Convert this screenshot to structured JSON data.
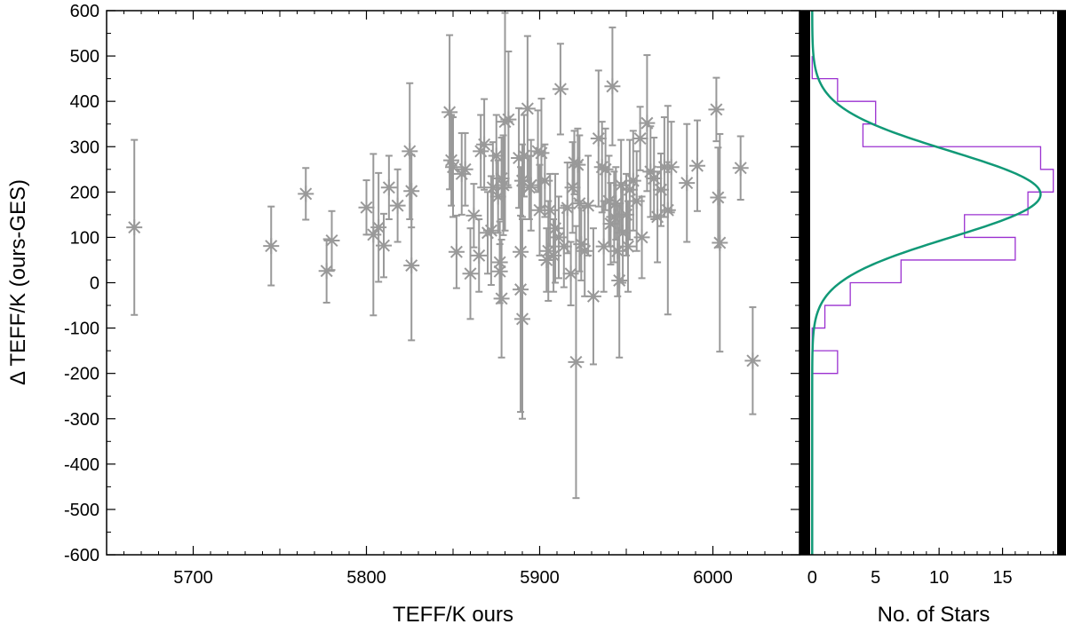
{
  "chart_data": [
    {
      "type": "scatter",
      "title": "",
      "xlabel": "TEFF/K ours",
      "ylabel": "Δ TEFF/K (ours-GES)",
      "xlim": [
        5650,
        6050
      ],
      "ylim": [
        -600,
        600
      ],
      "x_ticks": [
        5700,
        5800,
        5900,
        6000
      ],
      "y_ticks": [
        -600,
        -500,
        -400,
        -300,
        -200,
        -100,
        0,
        100,
        200,
        300,
        400,
        500,
        600
      ],
      "grid": false,
      "legend": "none",
      "colors": {
        "points": "#999999"
      },
      "marker": "asterisk",
      "points": [
        {
          "x": 5666,
          "y": 122,
          "err": 193
        },
        {
          "x": 5745,
          "y": 81,
          "err": 87
        },
        {
          "x": 5765,
          "y": 196,
          "err": 57
        },
        {
          "x": 5777,
          "y": 26,
          "err": 70
        },
        {
          "x": 5780,
          "y": 93,
          "err": 65
        },
        {
          "x": 5800,
          "y": 166,
          "err": 60
        },
        {
          "x": 5804,
          "y": 106,
          "err": 178
        },
        {
          "x": 5807,
          "y": 122,
          "err": 120
        },
        {
          "x": 5810,
          "y": 82,
          "err": 70
        },
        {
          "x": 5813,
          "y": 210,
          "err": 70
        },
        {
          "x": 5818,
          "y": 170,
          "err": 80
        },
        {
          "x": 5825,
          "y": 290,
          "err": 150
        },
        {
          "x": 5826,
          "y": 202,
          "err": 80
        },
        {
          "x": 5826,
          "y": 38,
          "err": 165
        },
        {
          "x": 5848,
          "y": 376,
          "err": 170
        },
        {
          "x": 5849,
          "y": 270,
          "err": 100
        },
        {
          "x": 5850,
          "y": 255,
          "err": 110
        },
        {
          "x": 5852,
          "y": 68,
          "err": 80
        },
        {
          "x": 5855,
          "y": 240,
          "err": 90
        },
        {
          "x": 5857,
          "y": 250,
          "err": 80
        },
        {
          "x": 5860,
          "y": 20,
          "err": 100
        },
        {
          "x": 5862,
          "y": 148,
          "err": 70
        },
        {
          "x": 5865,
          "y": 60,
          "err": 80
        },
        {
          "x": 5866,
          "y": 290,
          "err": 80
        },
        {
          "x": 5868,
          "y": 305,
          "err": 100
        },
        {
          "x": 5870,
          "y": 110,
          "err": 90
        },
        {
          "x": 5872,
          "y": 115,
          "err": 120
        },
        {
          "x": 5873,
          "y": 210,
          "err": 100
        },
        {
          "x": 5875,
          "y": 280,
          "err": 90
        },
        {
          "x": 5876,
          "y": 190,
          "err": 80
        },
        {
          "x": 5877,
          "y": 45,
          "err": 90
        },
        {
          "x": 5877,
          "y": 25,
          "err": 60
        },
        {
          "x": 5878,
          "y": -35,
          "err": 130
        },
        {
          "x": 5878,
          "y": 230,
          "err": 90
        },
        {
          "x": 5879,
          "y": 215,
          "err": 110
        },
        {
          "x": 5880,
          "y": 355,
          "err": 240
        },
        {
          "x": 5882,
          "y": 360,
          "err": 150
        },
        {
          "x": 5888,
          "y": 275,
          "err": 110
        },
        {
          "x": 5889,
          "y": 68,
          "err": 80
        },
        {
          "x": 5889,
          "y": -15,
          "err": 270
        },
        {
          "x": 5890,
          "y": 225,
          "err": 80
        },
        {
          "x": 5890,
          "y": -80,
          "err": 220
        },
        {
          "x": 5891,
          "y": 280,
          "err": 90
        },
        {
          "x": 5893,
          "y": 384,
          "err": 160
        },
        {
          "x": 5894,
          "y": 210,
          "err": 70
        },
        {
          "x": 5895,
          "y": 215,
          "err": 100
        },
        {
          "x": 5899,
          "y": 290,
          "err": 90
        },
        {
          "x": 5900,
          "y": 160,
          "err": 100
        },
        {
          "x": 5901,
          "y": 286,
          "err": 120
        },
        {
          "x": 5903,
          "y": 225,
          "err": 80
        },
        {
          "x": 5904,
          "y": 50,
          "err": 70
        },
        {
          "x": 5905,
          "y": 70,
          "err": 110
        },
        {
          "x": 5906,
          "y": 160,
          "err": 80
        },
        {
          "x": 5908,
          "y": 60,
          "err": 80
        },
        {
          "x": 5909,
          "y": 120,
          "err": 120
        },
        {
          "x": 5911,
          "y": 100,
          "err": 90
        },
        {
          "x": 5912,
          "y": 427,
          "err": 100
        },
        {
          "x": 5914,
          "y": 80,
          "err": 90
        },
        {
          "x": 5916,
          "y": 165,
          "err": 100
        },
        {
          "x": 5918,
          "y": 20,
          "err": 70
        },
        {
          "x": 5919,
          "y": 210,
          "err": 100
        },
        {
          "x": 5920,
          "y": 265,
          "err": 70
        },
        {
          "x": 5921,
          "y": -175,
          "err": 300
        },
        {
          "x": 5922,
          "y": 260,
          "err": 80
        },
        {
          "x": 5923,
          "y": 175,
          "err": 150
        },
        {
          "x": 5924,
          "y": 85,
          "err": 80
        },
        {
          "x": 5926,
          "y": 70,
          "err": 100
        },
        {
          "x": 5928,
          "y": 170,
          "err": 110
        },
        {
          "x": 5931,
          "y": -30,
          "err": 150
        },
        {
          "x": 5934,
          "y": 318,
          "err": 150
        },
        {
          "x": 5936,
          "y": 255,
          "err": 100
        },
        {
          "x": 5937,
          "y": 80,
          "err": 100
        },
        {
          "x": 5938,
          "y": 250,
          "err": 90
        },
        {
          "x": 5940,
          "y": 180,
          "err": 100
        },
        {
          "x": 5941,
          "y": 130,
          "err": 90
        },
        {
          "x": 5942,
          "y": 433,
          "err": 130
        },
        {
          "x": 5943,
          "y": 145,
          "err": 100
        },
        {
          "x": 5944,
          "y": 175,
          "err": 80
        },
        {
          "x": 5945,
          "y": 70,
          "err": 100
        },
        {
          "x": 5946,
          "y": 5,
          "err": 170
        },
        {
          "x": 5947,
          "y": 215,
          "err": 100
        },
        {
          "x": 5948,
          "y": 110,
          "err": 110
        },
        {
          "x": 5950,
          "y": 150,
          "err": 90
        },
        {
          "x": 5951,
          "y": 80,
          "err": 100
        },
        {
          "x": 5952,
          "y": 205,
          "err": 110
        },
        {
          "x": 5954,
          "y": 225,
          "err": 110
        },
        {
          "x": 5956,
          "y": 180,
          "err": 110
        },
        {
          "x": 5958,
          "y": 318,
          "err": 70
        },
        {
          "x": 5959,
          "y": 100,
          "err": 90
        },
        {
          "x": 5962,
          "y": 352,
          "err": 150
        },
        {
          "x": 5964,
          "y": 245,
          "err": 100
        },
        {
          "x": 5966,
          "y": 230,
          "err": 90
        },
        {
          "x": 5968,
          "y": 145,
          "err": 100
        },
        {
          "x": 5970,
          "y": 205,
          "err": 80
        },
        {
          "x": 5972,
          "y": 255,
          "err": 110
        },
        {
          "x": 5974,
          "y": 160,
          "err": 230
        },
        {
          "x": 5976,
          "y": 255,
          "err": 100
        },
        {
          "x": 5985,
          "y": 220,
          "err": 130
        },
        {
          "x": 5991,
          "y": 258,
          "err": 100
        },
        {
          "x": 6002,
          "y": 382,
          "err": 70
        },
        {
          "x": 6003,
          "y": 188,
          "err": 110
        },
        {
          "x": 6004,
          "y": 88,
          "err": 240
        },
        {
          "x": 6016,
          "y": 253,
          "err": 70
        },
        {
          "x": 6023,
          "y": -172,
          "err": 118
        }
      ]
    },
    {
      "type": "bar",
      "title": "",
      "xlabel": "No. of Stars",
      "ylabel": "",
      "xlim": [
        -1,
        20
      ],
      "ylim": [
        -600,
        600
      ],
      "x_ticks": [
        0,
        5,
        10,
        15
      ],
      "grid": false,
      "legend": "none",
      "orientation": "horizontal",
      "bin_width": 50,
      "colors": {
        "histogram": "#9b30d0",
        "fit": "#119977",
        "edge": "#000000"
      },
      "histogram": [
        {
          "bin_start": -200,
          "count": 2
        },
        {
          "bin_start": -150,
          "count": 0
        },
        {
          "bin_start": -100,
          "count": 1
        },
        {
          "bin_start": -50,
          "count": 3
        },
        {
          "bin_start": 0,
          "count": 7
        },
        {
          "bin_start": 50,
          "count": 16
        },
        {
          "bin_start": 100,
          "count": 12
        },
        {
          "bin_start": 150,
          "count": 17
        },
        {
          "bin_start": 200,
          "count": 19
        },
        {
          "bin_start": 250,
          "count": 18
        },
        {
          "bin_start": 300,
          "count": 4
        },
        {
          "bin_start": 350,
          "count": 5
        },
        {
          "bin_start": 400,
          "count": 2
        },
        {
          "bin_start": 450,
          "count": 0
        }
      ],
      "fit": {
        "type": "gaussian",
        "amplitude": 18,
        "mean": 195,
        "sigma": 95
      }
    }
  ]
}
